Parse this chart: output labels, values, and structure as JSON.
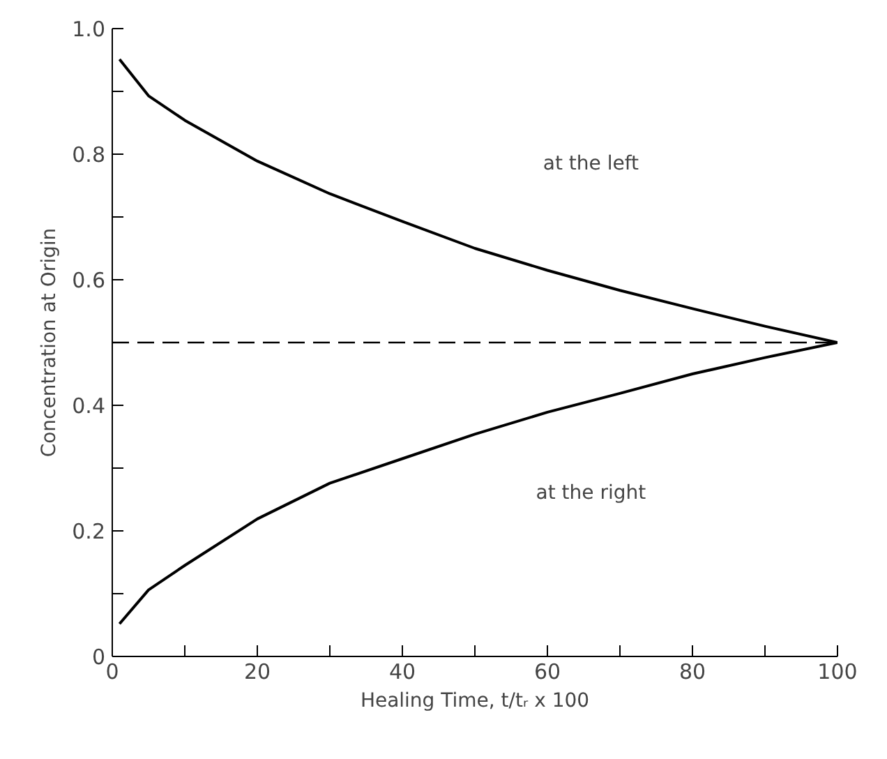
{
  "chart_data": {
    "type": "line",
    "xlabel": "Healing Time, t/tᵣ x 100",
    "ylabel": "Concentration at Origin",
    "x": [
      1,
      5,
      10,
      20,
      30,
      40,
      50,
      60,
      70,
      80,
      90,
      100
    ],
    "series": [
      {
        "color": "#000000",
        "values": [
          0.951,
          0.893,
          0.854,
          0.789,
          0.737,
          0.693,
          0.65,
          0.615,
          0.583,
          0.554,
          0.526,
          0.5
        ]
      },
      {
        "color": "#000000",
        "values": [
          0.052,
          0.106,
          0.145,
          0.219,
          0.276,
          0.315,
          0.354,
          0.389,
          0.419,
          0.45,
          0.476,
          0.5
        ]
      }
    ],
    "xlim": [
      0,
      100
    ],
    "ylim": [
      0,
      1
    ],
    "xticks": [
      0,
      {
        "value": 10,
        "label": null
      },
      20,
      {
        "value": 30,
        "label": null
      },
      40,
      {
        "value": 50,
        "label": null
      },
      60,
      {
        "value": 70,
        "label": null
      },
      80,
      {
        "value": 90,
        "label": null
      },
      100
    ],
    "yticks": [
      0,
      {
        "value": 0.1,
        "label": null
      },
      {
        "value": 0.2,
        "label": "0.2"
      },
      {
        "value": 0.3,
        "label": null
      },
      {
        "value": 0.4,
        "label": "0.4"
      },
      {
        "value": 0.5,
        "label": null
      },
      {
        "value": 0.6,
        "label": "0.6"
      },
      {
        "value": 0.7,
        "label": null
      },
      {
        "value": 0.8,
        "label": "0.8"
      },
      {
        "value": 0.9,
        "label": null
      },
      {
        "value": 1,
        "label": "1.0"
      }
    ],
    "ref_lines": [
      {
        "axis": "y",
        "value": 0.5,
        "color": "#000000",
        "line_style": "dashed"
      }
    ],
    "annotations": [
      "at the left",
      "at the right"
    ],
    "grid": false,
    "marker": "none",
    "line_style": "solid"
  }
}
